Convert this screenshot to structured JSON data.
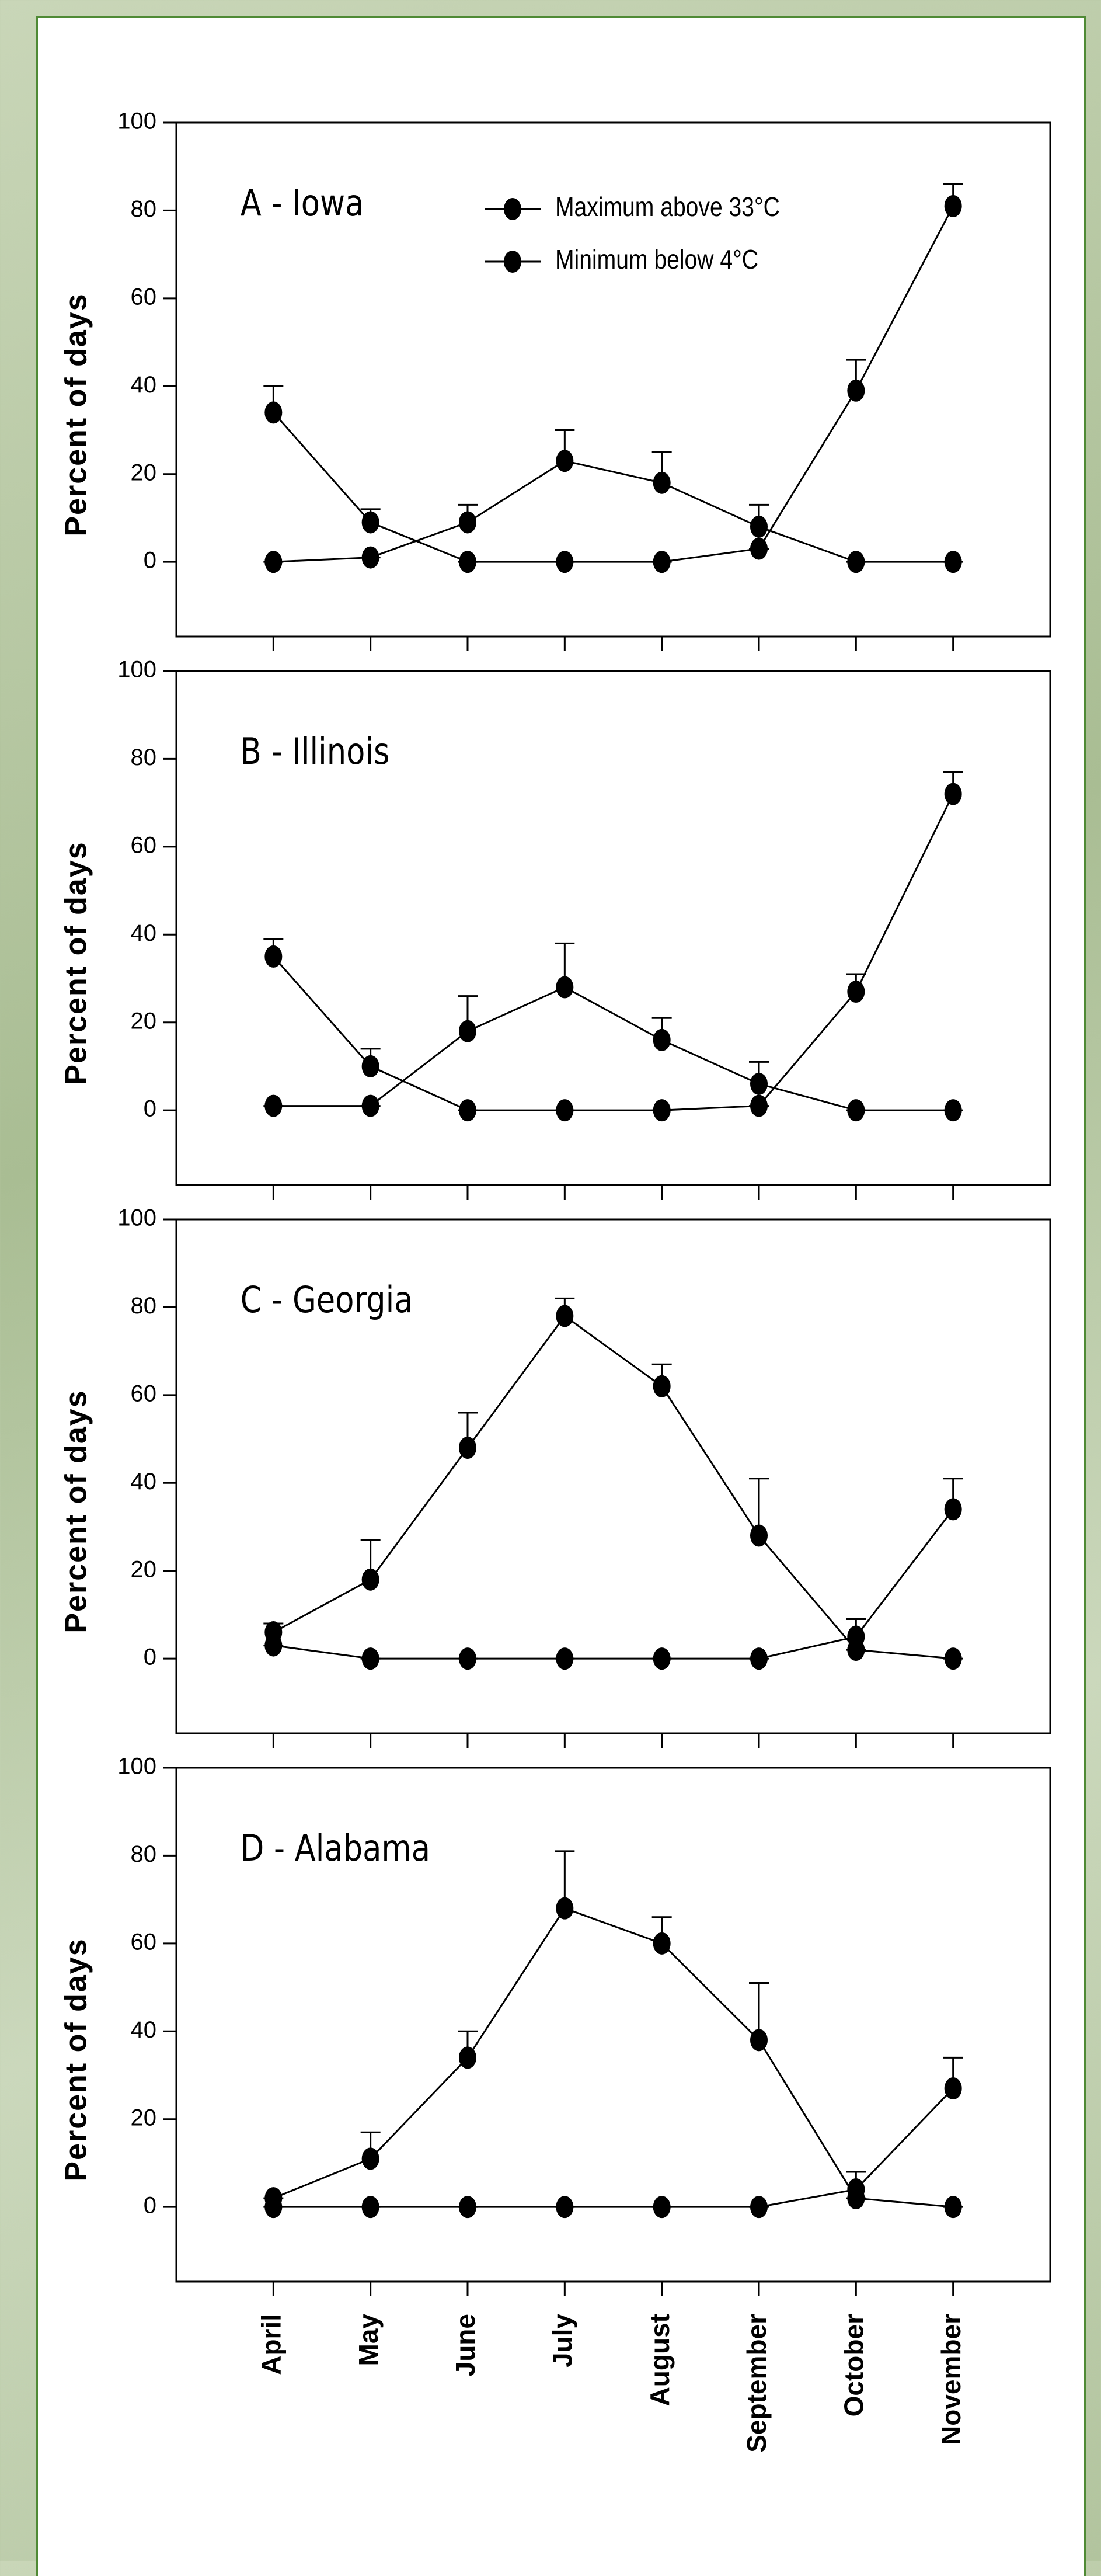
{
  "chart_data": [
    {
      "type": "line",
      "title": "A - Iowa",
      "y_label": "Percent of days",
      "legend": "upper center",
      "categories": [
        null,
        null,
        null,
        null,
        null,
        null,
        null,
        null
      ],
      "series": [
        {
          "name": "Maximum above 33°C",
          "color": "#000000",
          "values": [
            0,
            1,
            9,
            23,
            18,
            8,
            0,
            0
          ],
          "errors": [
            0,
            0,
            4,
            7,
            7,
            5,
            0,
            0
          ]
        },
        {
          "name": "Minimum below 4°C",
          "color": "#000000",
          "values": [
            34,
            9,
            0,
            0,
            0,
            3,
            39,
            81
          ],
          "errors": [
            6,
            3,
            0,
            0,
            0,
            0,
            7,
            5
          ]
        }
      ],
      "ylim": [
        -17,
        100
      ],
      "yticks": [
        0,
        20,
        40,
        60,
        80,
        100
      ]
    },
    {
      "type": "line",
      "title": "B - Illinois",
      "y_label": "Percent of days",
      "categories": [
        null,
        null,
        null,
        null,
        null,
        null,
        null,
        null
      ],
      "series": [
        {
          "color": "#000000",
          "values": [
            1,
            1,
            18,
            28,
            16,
            6,
            0,
            0
          ],
          "errors": [
            0,
            0,
            8,
            10,
            5,
            5,
            0,
            0
          ]
        },
        {
          "color": "#000000",
          "values": [
            35,
            10,
            0,
            0,
            0,
            1,
            27,
            72
          ],
          "errors": [
            4,
            4,
            0,
            0,
            0,
            0,
            4,
            5
          ]
        }
      ],
      "ylim": [
        -17,
        100
      ],
      "yticks": [
        0,
        20,
        40,
        60,
        80,
        100
      ]
    },
    {
      "type": "line",
      "title": "C - Georgia",
      "y_label": "Percent of days",
      "categories": [
        null,
        null,
        null,
        null,
        null,
        null,
        null,
        null
      ],
      "series": [
        {
          "color": "#000000",
          "values": [
            6,
            18,
            48,
            78,
            62,
            28,
            2,
            0
          ],
          "errors": [
            2,
            9,
            8,
            4,
            5,
            13,
            0,
            0
          ]
        },
        {
          "color": "#000000",
          "values": [
            3,
            0,
            0,
            0,
            0,
            0,
            5,
            34
          ],
          "errors": [
            0,
            0,
            0,
            0,
            0,
            0,
            4,
            7
          ]
        }
      ],
      "ylim": [
        -17,
        100
      ],
      "yticks": [
        0,
        20,
        40,
        60,
        80,
        100
      ]
    },
    {
      "type": "line",
      "title": "D - Alabama",
      "y_label": "Percent of days",
      "categories": [
        "April",
        "May",
        "June",
        "July",
        "August",
        "September",
        "October",
        "November"
      ],
      "series": [
        {
          "color": "#000000",
          "values": [
            2,
            11,
            34,
            68,
            60,
            38,
            2,
            0
          ],
          "errors": [
            0,
            6,
            6,
            13,
            6,
            13,
            0,
            0
          ]
        },
        {
          "color": "#000000",
          "values": [
            0,
            0,
            0,
            0,
            0,
            0,
            4,
            27
          ],
          "errors": [
            0,
            0,
            0,
            0,
            0,
            0,
            4,
            7
          ]
        }
      ],
      "ylim": [
        -17,
        100
      ],
      "yticks": [
        0,
        20,
        40,
        60,
        80,
        100
      ]
    }
  ]
}
